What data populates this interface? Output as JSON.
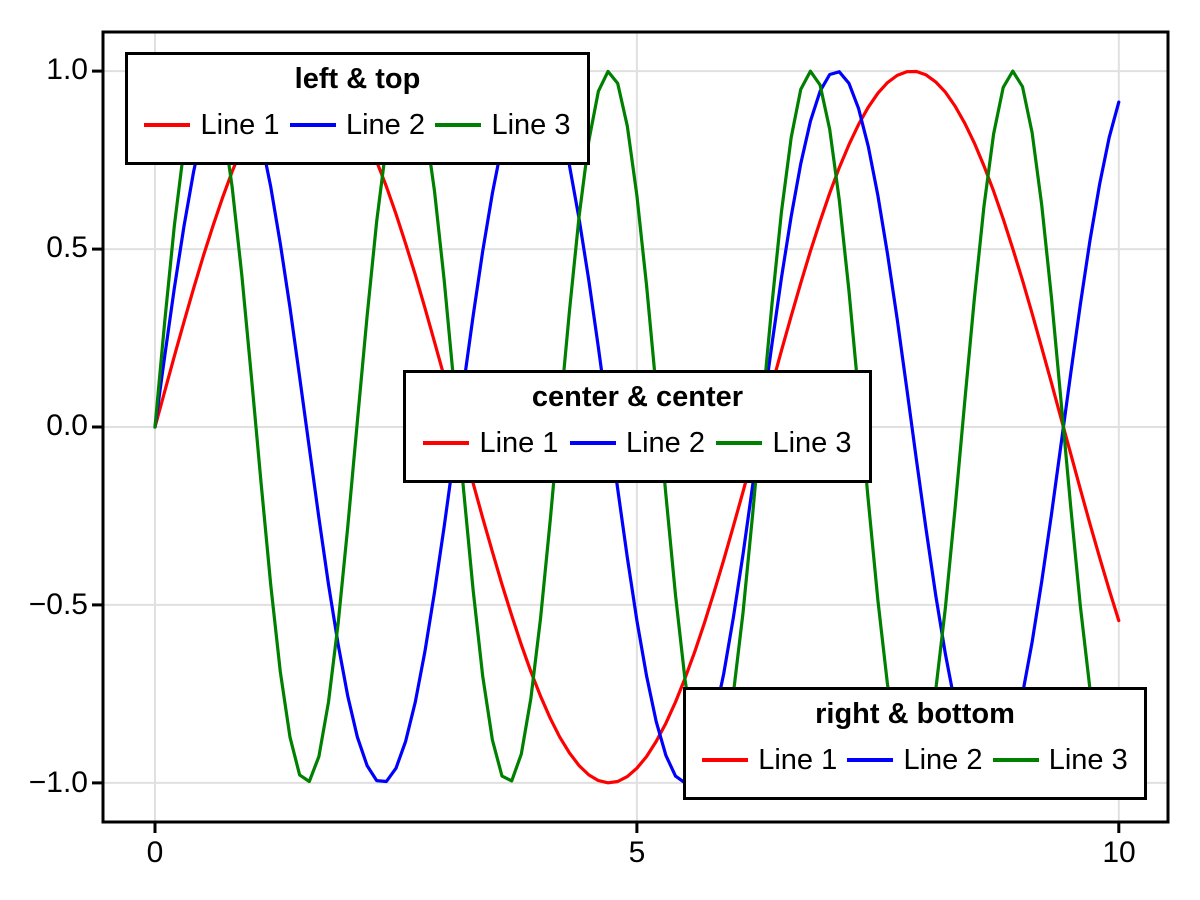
{
  "chart_data": {
    "type": "line",
    "title": "",
    "xlabel": "",
    "ylabel": "",
    "xlim": [
      -0.54,
      10.51
    ],
    "ylim": [
      -1.11,
      1.11
    ],
    "grid": true,
    "background_color": "#ffffff",
    "frame_color": "#000000",
    "grid_color": "#e0e0e0",
    "tick_color": "#000000",
    "xticks": [
      {
        "value": 0,
        "label": "0"
      },
      {
        "value": 5,
        "label": "5"
      },
      {
        "value": 10,
        "label": "10"
      }
    ],
    "yticks": [
      {
        "value": 1.0,
        "label": "1.0"
      },
      {
        "value": 0.5,
        "label": "0.5"
      },
      {
        "value": 0.0,
        "label": "0.0"
      },
      {
        "value": -0.5,
        "label": "−0.5"
      },
      {
        "value": -1.0,
        "label": "−1.0"
      }
    ],
    "series": [
      {
        "name": "Line 1",
        "color": "#ff0000",
        "fn": "sin",
        "amplitude": 1,
        "frequency": 1,
        "phase": 0,
        "x_min": 0,
        "x_max": 10,
        "samples": 101
      },
      {
        "name": "Line 2",
        "color": "#0000ff",
        "fn": "sin",
        "amplitude": 1,
        "frequency": 2,
        "phase": 0,
        "x_min": 0,
        "x_max": 10,
        "samples": 101
      },
      {
        "name": "Line 3",
        "color": "#008000",
        "fn": "sin",
        "amplitude": 1,
        "frequency": 3,
        "phase": 0,
        "x_min": 0,
        "x_max": 10,
        "samples": 101
      }
    ],
    "legends": [
      {
        "title": "left & top",
        "position": "left-top",
        "entries": [
          "Line 1",
          "Line 2",
          "Line 3"
        ]
      },
      {
        "title": "center & center",
        "position": "center-center",
        "entries": [
          "Line 1",
          "Line 2",
          "Line 3"
        ]
      },
      {
        "title": "right & bottom",
        "position": "right-bottom",
        "entries": [
          "Line 1",
          "Line 2",
          "Line 3"
        ]
      }
    ]
  }
}
